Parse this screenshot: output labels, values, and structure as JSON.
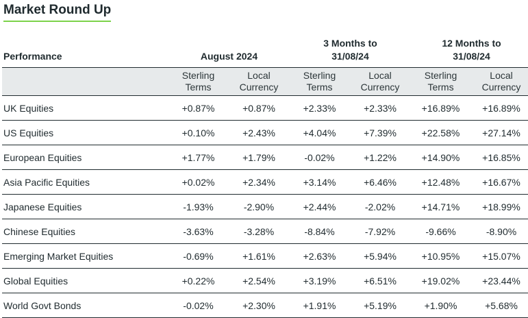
{
  "title": "Market Round Up",
  "header": {
    "performance": "Performance",
    "groups": [
      {
        "line1": "August 2024",
        "line2": ""
      },
      {
        "line1": "3 Months to",
        "line2": "31/08/24"
      },
      {
        "line1": "12 Months to",
        "line2": "31/08/24"
      }
    ],
    "subheaders": [
      {
        "line1": "Sterling",
        "line2": "Terms"
      },
      {
        "line1": "Local",
        "line2": "Currency"
      },
      {
        "line1": "Sterling",
        "line2": "Terms"
      },
      {
        "line1": "Local",
        "line2": "Currency"
      },
      {
        "line1": "Sterling",
        "line2": "Terms"
      },
      {
        "line1": "Local",
        "line2": "Currency"
      }
    ]
  },
  "rows": [
    {
      "name": "UK Equities",
      "values": [
        "+0.87%",
        "+0.87%",
        "+2.33%",
        "+2.33%",
        "+16.89%",
        "+16.89%"
      ]
    },
    {
      "name": "US Equities",
      "values": [
        "+0.10%",
        "+2.43%",
        "+4.04%",
        "+7.39%",
        "+22.58%",
        "+27.14%"
      ]
    },
    {
      "name": "European Equities",
      "values": [
        "+1.77%",
        "+1.79%",
        "-0.02%",
        "+1.22%",
        "+14.90%",
        "+16.85%"
      ]
    },
    {
      "name": "Asia Pacific Equities",
      "values": [
        "+0.02%",
        "+2.34%",
        "+3.14%",
        "+6.46%",
        "+12.48%",
        "+16.67%"
      ]
    },
    {
      "name": "Japanese Equities",
      "values": [
        "-1.93%",
        "-2.90%",
        "+2.44%",
        "-2.02%",
        "+14.71%",
        "+18.99%"
      ]
    },
    {
      "name": "Chinese Equities",
      "values": [
        "-3.63%",
        "-3.28%",
        "-8.84%",
        "-7.92%",
        "-9.66%",
        "-8.90%"
      ]
    },
    {
      "name": "Emerging Market Equities",
      "values": [
        "-0.69%",
        "+1.61%",
        "+2.63%",
        "+5.94%",
        "+10.95%",
        "+15.07%"
      ]
    },
    {
      "name": "Global Equities",
      "values": [
        "+0.22%",
        "+2.54%",
        "+3.19%",
        "+6.51%",
        "+19.02%",
        "+23.44%"
      ]
    },
    {
      "name": "World Govt Bonds",
      "values": [
        "-0.02%",
        "+2.30%",
        "+1.91%",
        "+5.19%",
        "+1.90%",
        "+5.68%"
      ]
    }
  ],
  "colors": {
    "accent_underline": "#7cd24a",
    "header_band": "#e7eaeb",
    "text": "#1f2a2e"
  }
}
